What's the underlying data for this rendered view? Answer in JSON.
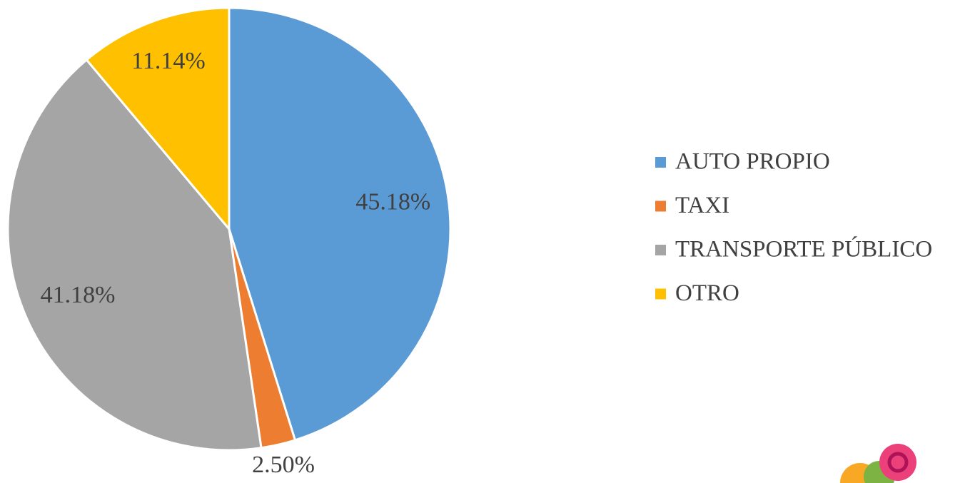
{
  "chart_data": {
    "type": "pie",
    "categories": [
      "AUTO PROPIO",
      "TAXI",
      "TRANSPORTE PÚBLICO",
      "OTRO"
    ],
    "values": [
      45.18,
      2.5,
      41.18,
      11.14
    ],
    "value_labels": [
      "45.18%",
      "2.50%",
      "41.18%",
      "11.14%"
    ],
    "colors": [
      "#5b9bd5",
      "#ed7d31",
      "#a5a5a5",
      "#ffc000"
    ],
    "legend": "right"
  }
}
